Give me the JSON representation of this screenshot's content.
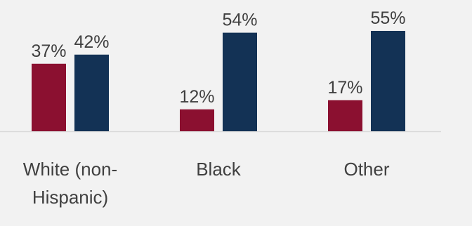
{
  "chart_data": {
    "type": "bar",
    "categories": [
      "White (non-Hispanic)",
      "Black",
      "Other"
    ],
    "category_lines": [
      [
        "White (non-",
        "Hispanic)"
      ],
      [
        "Black"
      ],
      [
        "Other"
      ]
    ],
    "series": [
      {
        "color": "#8b1030",
        "values": [
          37,
          12,
          17
        ],
        "labels": [
          "37%",
          "12%",
          "17%"
        ]
      },
      {
        "color": "#133255",
        "values": [
          42,
          54,
          55
        ],
        "labels": [
          "42%",
          "54%",
          "55%"
        ]
      }
    ],
    "ylim": [
      0,
      55
    ],
    "grid": false,
    "legend": "none"
  }
}
